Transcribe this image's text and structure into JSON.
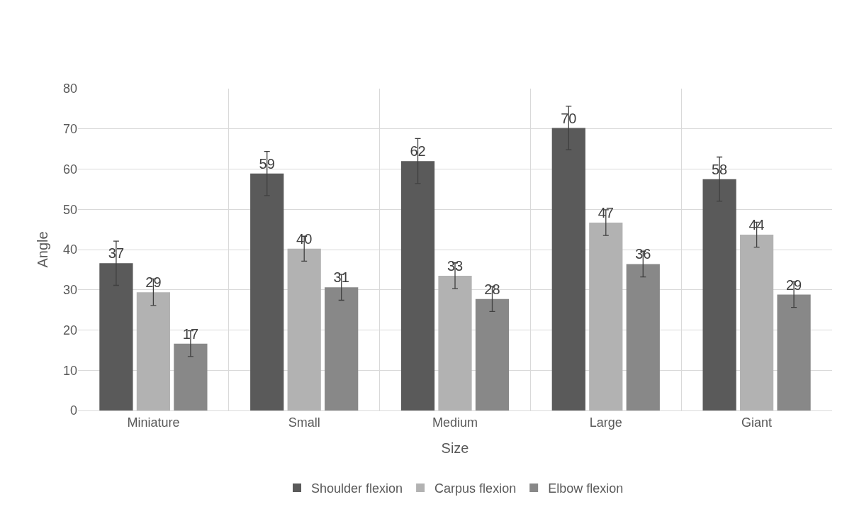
{
  "chart_data": {
    "type": "bar",
    "xlabel": "Size",
    "ylabel": "Angle",
    "categories": [
      "Miniature",
      "Small",
      "Medium",
      "Large",
      "Giant"
    ],
    "series": [
      {
        "name": "Shoulder flexion",
        "color": "#5a5a5a",
        "values": [
          36.6,
          58.9,
          62.0,
          70.2,
          57.5
        ],
        "errors": [
          5.5,
          5.5,
          5.6,
          5.4,
          5.5
        ],
        "value_labels": [
          "37",
          "59",
          "62",
          "70",
          "58"
        ]
      },
      {
        "name": "Carpus flexion",
        "color": "#b2b2b2",
        "values": [
          29.4,
          40.2,
          33.5,
          46.7,
          43.7
        ],
        "errors": [
          3.3,
          3.1,
          3.2,
          3.2,
          3.1
        ],
        "value_labels": [
          "29",
          "40",
          "33",
          "47",
          "44"
        ]
      },
      {
        "name": "Elbow flexion",
        "color": "#888888",
        "values": [
          16.6,
          30.6,
          27.7,
          36.4,
          28.8
        ],
        "errors": [
          3.2,
          3.2,
          3.1,
          3.2,
          3.2
        ],
        "value_labels": [
          "17",
          "31",
          "28",
          "36",
          "29"
        ]
      }
    ],
    "ylim": [
      0,
      80
    ],
    "yticks": [
      0,
      10,
      20,
      30,
      40,
      50,
      60,
      70,
      80
    ],
    "grid": true,
    "legend": "bottom"
  }
}
